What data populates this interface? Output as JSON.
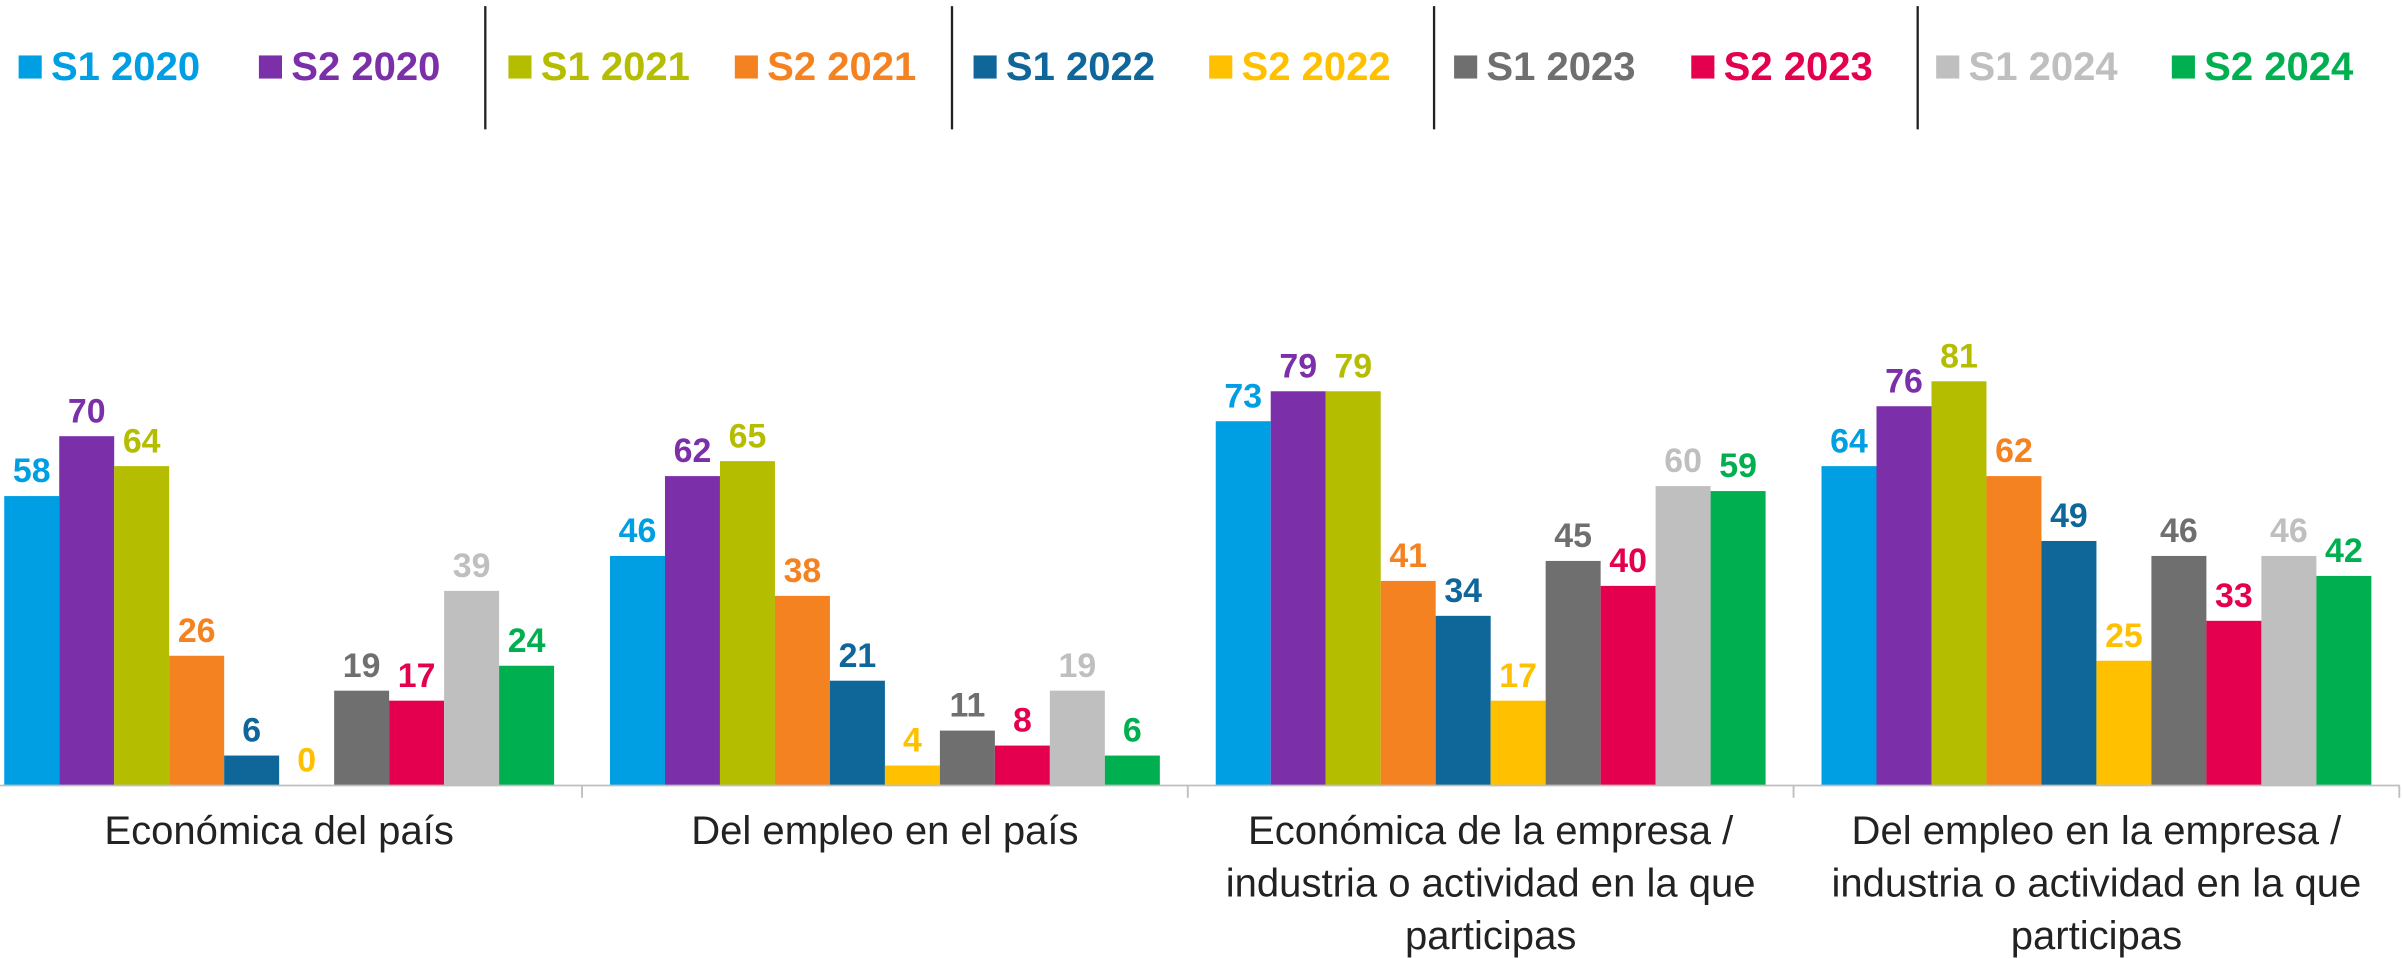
{
  "chart_data": {
    "type": "bar",
    "categories": [
      "Económica del país",
      "Del empleo en el país",
      "Económica de la empresa / industria o actividad en la que participas",
      "Del empleo en la empresa / industria o actividad en la que participas"
    ],
    "ylim": [
      0,
      100
    ],
    "legend": "top",
    "series": [
      {
        "name": "S1 2020",
        "color": "#009fe3",
        "values": [
          58,
          46,
          73,
          64
        ]
      },
      {
        "name": "S2 2020",
        "color": "#7b2fa8",
        "values": [
          70,
          62,
          79,
          76
        ]
      },
      {
        "name": "S1 2021",
        "color": "#b5bd00",
        "values": [
          64,
          65,
          79,
          81
        ]
      },
      {
        "name": "S2 2021",
        "color": "#f58220",
        "values": [
          26,
          38,
          41,
          62
        ]
      },
      {
        "name": "S1 2022",
        "color": "#0e6699",
        "values": [
          6,
          21,
          34,
          49
        ]
      },
      {
        "name": "S2 2022",
        "color": "#ffc000",
        "values": [
          0,
          4,
          17,
          25
        ]
      },
      {
        "name": "S1 2023",
        "color": "#6f6f6f",
        "values": [
          19,
          11,
          45,
          46
        ]
      },
      {
        "name": "S2 2023",
        "color": "#e5004f",
        "values": [
          17,
          8,
          40,
          33
        ]
      },
      {
        "name": "S1 2024",
        "color": "#bfbfbf",
        "values": [
          39,
          19,
          60,
          46
        ]
      },
      {
        "name": "S2 2024",
        "color": "#00b050",
        "values": [
          24,
          6,
          59,
          42
        ]
      }
    ]
  }
}
